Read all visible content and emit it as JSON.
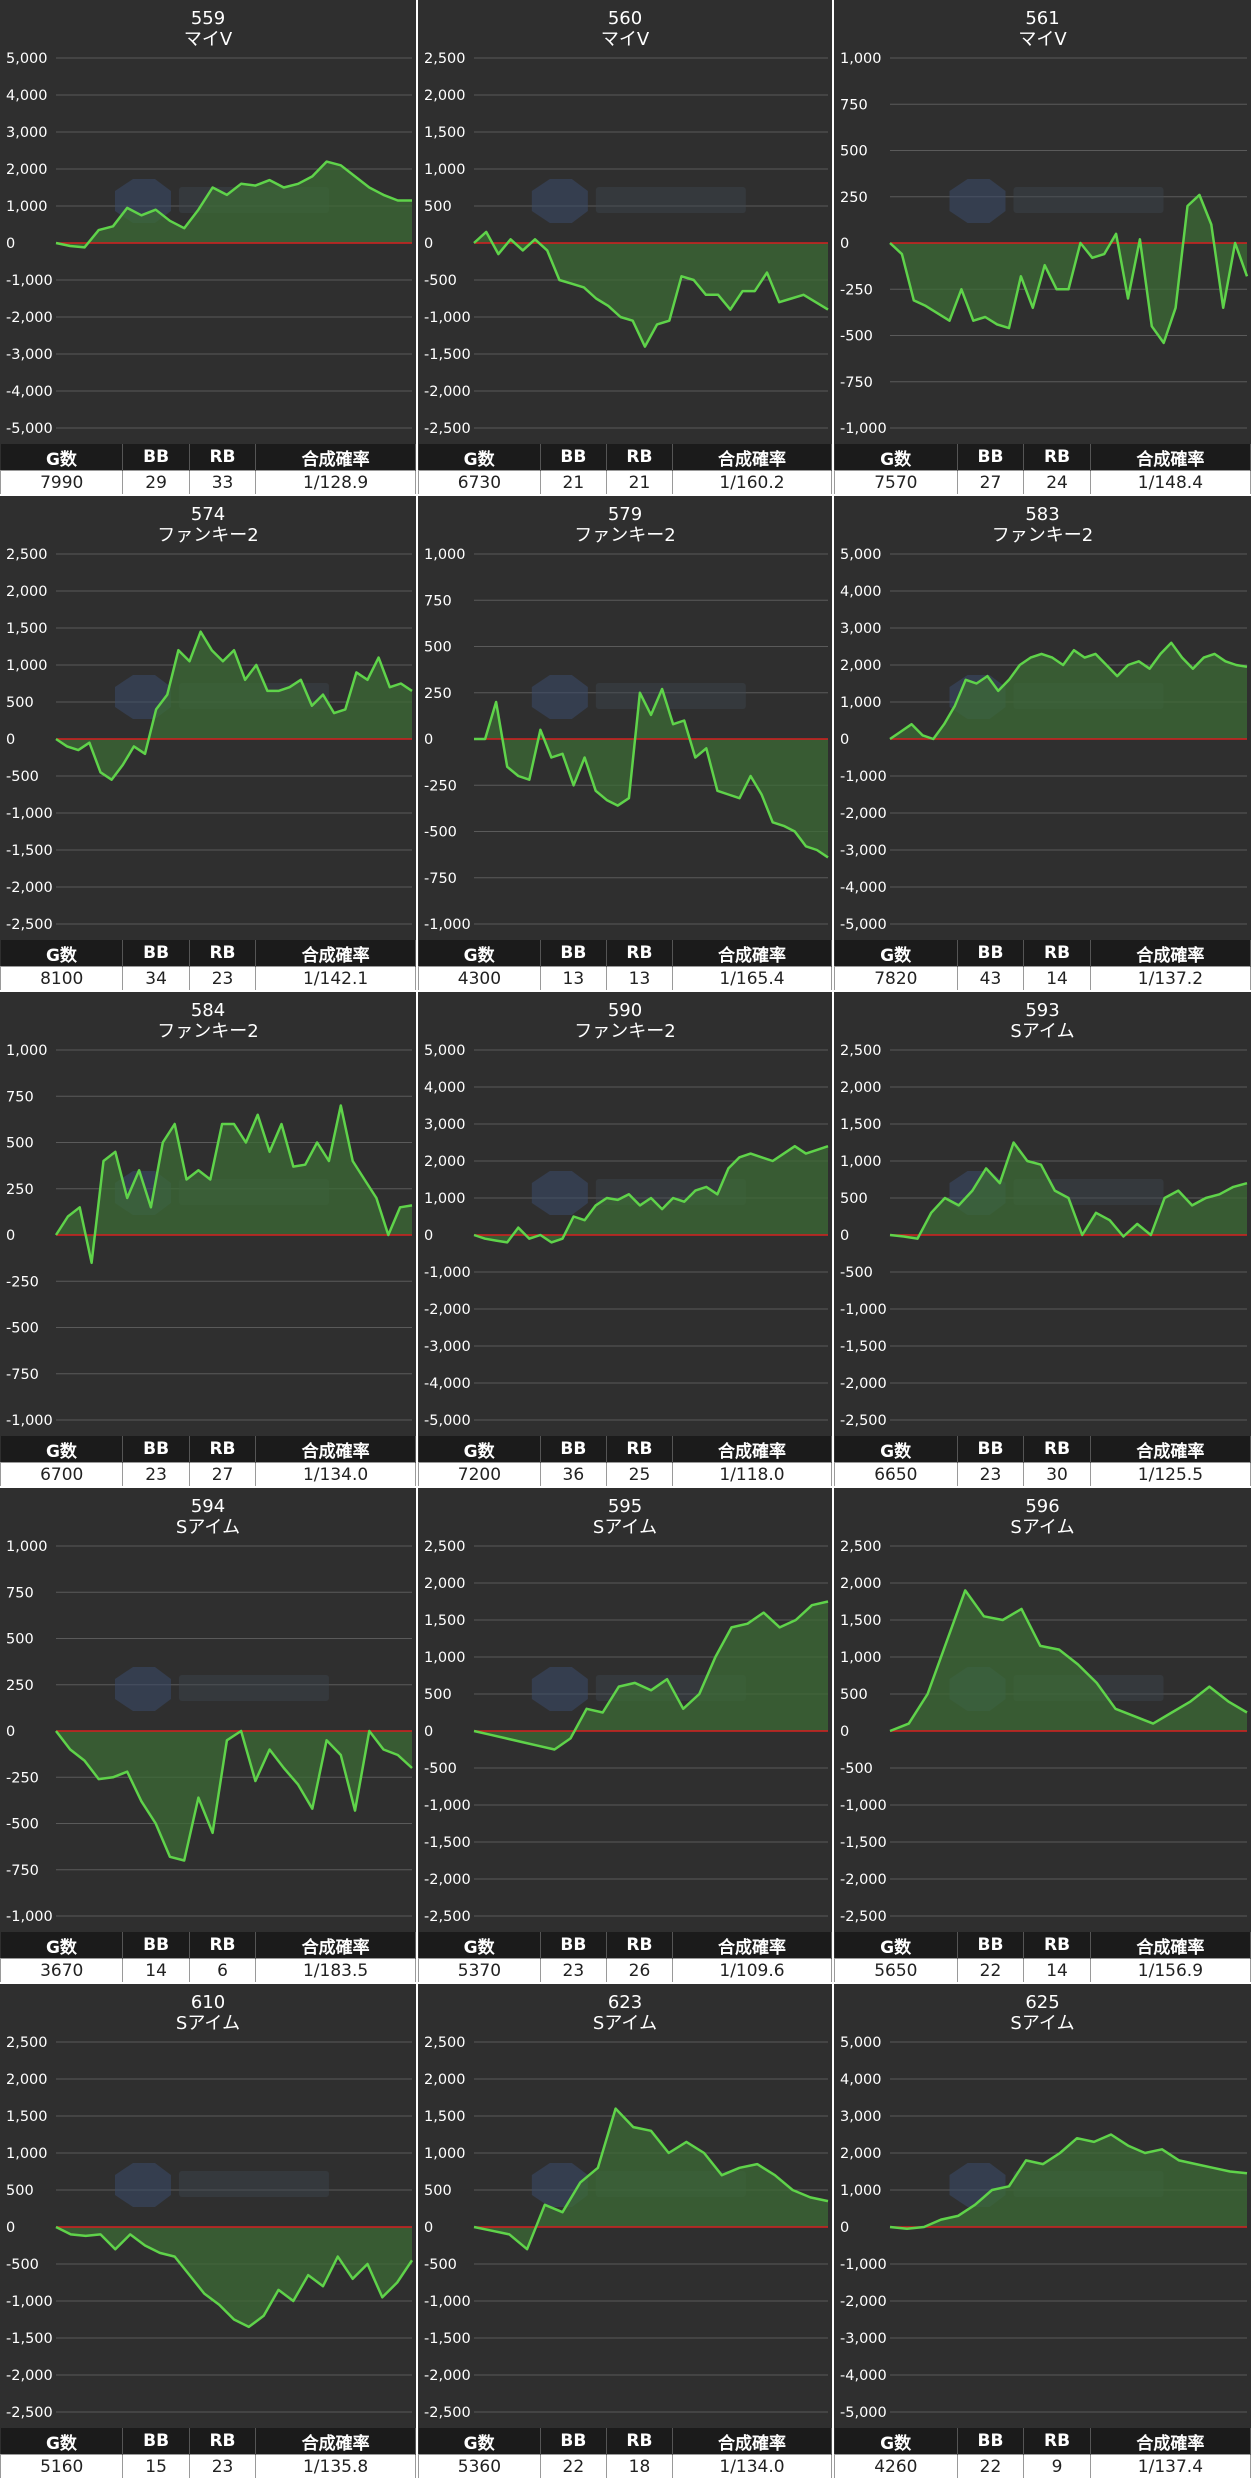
{
  "table_headers": {
    "games": "G数",
    "bb": "BB",
    "rb": "RB",
    "prob": "合成確率"
  },
  "colors": {
    "line": "#5fd34a",
    "fill": "#3c6b36",
    "zero": "#d62020",
    "bg": "#2f2f2f",
    "grid": "#5a5a5a"
  },
  "chart_data": [
    {
      "type": "area",
      "title": "559",
      "subtitle": "マイV",
      "ylim": [
        -5000,
        5000
      ],
      "yticks": [
        "5,000",
        "4,000",
        "3,000",
        "2,000",
        "1,000",
        "0",
        "-1,000",
        "-2,000",
        "-3,000",
        "-4,000",
        "-5,000"
      ],
      "y": [
        0,
        -80,
        -120,
        350,
        450,
        950,
        750,
        900,
        600,
        400,
        900,
        1500,
        1300,
        1600,
        1550,
        1700,
        1500,
        1600,
        1800,
        2200,
        2100,
        1800,
        1500,
        1300,
        1150,
        1150
      ],
      "stats": {
        "games": "7990",
        "bb": "29",
        "rb": "33",
        "prob": "1/128.9"
      }
    },
    {
      "type": "area",
      "title": "560",
      "subtitle": "マイV",
      "ylim": [
        -2500,
        2500
      ],
      "yticks": [
        "2,500",
        "2,000",
        "1,500",
        "1,000",
        "500",
        "0",
        "-500",
        "-1,000",
        "-1,500",
        "-2,000",
        "-2,500"
      ],
      "y": [
        0,
        150,
        -150,
        50,
        -100,
        50,
        -100,
        -500,
        -550,
        -600,
        -750,
        -850,
        -1000,
        -1050,
        -1400,
        -1100,
        -1050,
        -450,
        -500,
        -700,
        -700,
        -900,
        -650,
        -650,
        -400,
        -800,
        -750,
        -700,
        -800,
        -900
      ],
      "stats": {
        "games": "6730",
        "bb": "21",
        "rb": "21",
        "prob": "1/160.2"
      }
    },
    {
      "type": "area",
      "title": "561",
      "subtitle": "マイV",
      "ylim": [
        -1000,
        1000
      ],
      "yticks": [
        "1,000",
        "750",
        "500",
        "250",
        "0",
        "-250",
        "-500",
        "-750",
        "-1,000"
      ],
      "y": [
        0,
        -60,
        -310,
        -340,
        -380,
        -420,
        -250,
        -420,
        -400,
        -440,
        -460,
        -180,
        -350,
        -120,
        -250,
        -250,
        0,
        -80,
        -60,
        50,
        -300,
        20,
        -450,
        -540,
        -350,
        200,
        260,
        100,
        -350,
        0,
        -180
      ],
      "stats": {
        "games": "7570",
        "bb": "27",
        "rb": "24",
        "prob": "1/148.4"
      }
    },
    {
      "type": "area",
      "title": "574",
      "subtitle": "ファンキー2",
      "ylim": [
        -2500,
        2500
      ],
      "yticks": [
        "2,500",
        "2,000",
        "1,500",
        "1,000",
        "500",
        "0",
        "-500",
        "-1,000",
        "-1,500",
        "-2,000",
        "-2,500"
      ],
      "y": [
        0,
        -100,
        -150,
        -50,
        -450,
        -550,
        -350,
        -100,
        -200,
        400,
        600,
        1200,
        1050,
        1450,
        1200,
        1050,
        1200,
        800,
        1000,
        650,
        650,
        700,
        800,
        450,
        600,
        350,
        400,
        900,
        800,
        1100,
        700,
        750,
        650
      ],
      "stats": {
        "games": "8100",
        "bb": "34",
        "rb": "23",
        "prob": "1/142.1"
      }
    },
    {
      "type": "area",
      "title": "579",
      "subtitle": "ファンキー2",
      "ylim": [
        -1000,
        1000
      ],
      "yticks": [
        "1,000",
        "750",
        "500",
        "250",
        "0",
        "-250",
        "-500",
        "-750",
        "-1,000"
      ],
      "y": [
        0,
        0,
        200,
        -150,
        -200,
        -220,
        50,
        -100,
        -80,
        -250,
        -100,
        -280,
        -330,
        -360,
        -320,
        250,
        130,
        270,
        80,
        100,
        -100,
        -50,
        -280,
        -300,
        -320,
        -200,
        -300,
        -450,
        -470,
        -500,
        -580,
        -600,
        -640
      ],
      "stats": {
        "games": "4300",
        "bb": "13",
        "rb": "13",
        "prob": "1/165.4"
      }
    },
    {
      "type": "area",
      "title": "583",
      "subtitle": "ファンキー2",
      "ylim": [
        -5000,
        5000
      ],
      "yticks": [
        "5,000",
        "4,000",
        "3,000",
        "2,000",
        "1,000",
        "0",
        "-1,000",
        "-2,000",
        "-3,000",
        "-4,000",
        "-5,000"
      ],
      "y": [
        0,
        200,
        400,
        100,
        0,
        400,
        900,
        1600,
        1500,
        1700,
        1300,
        1600,
        2000,
        2200,
        2300,
        2200,
        2000,
        2400,
        2200,
        2300,
        2000,
        1700,
        2000,
        2100,
        1900,
        2300,
        2600,
        2200,
        1900,
        2200,
        2300,
        2100,
        2000,
        1950
      ],
      "stats": {
        "games": "7820",
        "bb": "43",
        "rb": "14",
        "prob": "1/137.2"
      }
    },
    {
      "type": "area",
      "title": "584",
      "subtitle": "ファンキー2",
      "ylim": [
        -1000,
        1000
      ],
      "yticks": [
        "1,000",
        "750",
        "500",
        "250",
        "0",
        "-250",
        "-500",
        "-750",
        "-1,000"
      ],
      "y": [
        0,
        100,
        150,
        -150,
        400,
        450,
        200,
        350,
        150,
        500,
        600,
        300,
        350,
        300,
        600,
        600,
        500,
        650,
        450,
        600,
        370,
        380,
        500,
        400,
        700,
        400,
        300,
        200,
        0,
        150,
        160
      ],
      "stats": {
        "games": "6700",
        "bb": "23",
        "rb": "27",
        "prob": "1/134.0"
      }
    },
    {
      "type": "area",
      "title": "590",
      "subtitle": "ファンキー2",
      "ylim": [
        -5000,
        5000
      ],
      "yticks": [
        "5,000",
        "4,000",
        "3,000",
        "2,000",
        "1,000",
        "0",
        "-1,000",
        "-2,000",
        "-3,000",
        "-4,000",
        "-5,000"
      ],
      "y": [
        0,
        -100,
        -150,
        -200,
        200,
        -100,
        0,
        -200,
        -100,
        500,
        400,
        800,
        1000,
        950,
        1100,
        800,
        1000,
        700,
        1000,
        900,
        1200,
        1300,
        1100,
        1800,
        2100,
        2200,
        2100,
        2000,
        2200,
        2400,
        2200,
        2300,
        2400
      ],
      "stats": {
        "games": "7200",
        "bb": "36",
        "rb": "25",
        "prob": "1/118.0"
      }
    },
    {
      "type": "area",
      "title": "593",
      "subtitle": "Sアイム",
      "ylim": [
        -2500,
        2500
      ],
      "yticks": [
        "2,500",
        "2,000",
        "1,500",
        "1,000",
        "500",
        "0",
        "-500",
        "-1,000",
        "-1,500",
        "-2,000",
        "-2,500"
      ],
      "y": [
        0,
        -20,
        -50,
        300,
        500,
        400,
        600,
        900,
        700,
        1250,
        1000,
        950,
        600,
        500,
        0,
        300,
        200,
        -20,
        150,
        0,
        500,
        600,
        400,
        500,
        550,
        650,
        700
      ],
      "stats": {
        "games": "6650",
        "bb": "23",
        "rb": "30",
        "prob": "1/125.5"
      }
    },
    {
      "type": "area",
      "title": "594",
      "subtitle": "Sアイム",
      "ylim": [
        -1000,
        1000
      ],
      "yticks": [
        "1,000",
        "750",
        "500",
        "250",
        "0",
        "-250",
        "-500",
        "-750",
        "-1,000"
      ],
      "y": [
        0,
        -100,
        -160,
        -260,
        -250,
        -220,
        -380,
        -500,
        -680,
        -700,
        -360,
        -550,
        -50,
        0,
        -270,
        -100,
        -200,
        -290,
        -420,
        -50,
        -130,
        -430,
        0,
        -100,
        -130,
        -200
      ],
      "stats": {
        "games": "3670",
        "bb": "14",
        "rb": "6",
        "prob": "1/183.5"
      }
    },
    {
      "type": "area",
      "title": "595",
      "subtitle": "Sアイム",
      "ylim": [
        -2500,
        2500
      ],
      "yticks": [
        "2,500",
        "2,000",
        "1,500",
        "1,000",
        "500",
        "0",
        "-500",
        "-1,000",
        "-1,500",
        "-2,000",
        "-2,500"
      ],
      "y": [
        0,
        -50,
        -100,
        -150,
        -200,
        -250,
        -100,
        300,
        250,
        600,
        650,
        550,
        700,
        300,
        500,
        1000,
        1400,
        1450,
        1600,
        1400,
        1500,
        1700,
        1750
      ],
      "stats": {
        "games": "5370",
        "bb": "23",
        "rb": "26",
        "prob": "1/109.6"
      }
    },
    {
      "type": "area",
      "title": "596",
      "subtitle": "Sアイム",
      "ylim": [
        -2500,
        2500
      ],
      "yticks": [
        "2,500",
        "2,000",
        "1,500",
        "1,000",
        "500",
        "0",
        "-500",
        "-1,000",
        "-1,500",
        "-2,000",
        "-2,500"
      ],
      "y": [
        0,
        100,
        500,
        1200,
        1900,
        1550,
        1500,
        1650,
        1150,
        1100,
        900,
        650,
        300,
        200,
        100,
        250,
        400,
        600,
        400,
        250
      ],
      "stats": {
        "games": "5650",
        "bb": "22",
        "rb": "14",
        "prob": "1/156.9"
      }
    },
    {
      "type": "area",
      "title": "610",
      "subtitle": "Sアイム",
      "ylim": [
        -2500,
        2500
      ],
      "yticks": [
        "2,500",
        "2,000",
        "1,500",
        "1,000",
        "500",
        "0",
        "-500",
        "-1,000",
        "-1,500",
        "-2,000",
        "-2,500"
      ],
      "y": [
        0,
        -100,
        -120,
        -100,
        -300,
        -100,
        -250,
        -350,
        -400,
        -650,
        -900,
        -1050,
        -1250,
        -1350,
        -1200,
        -850,
        -1000,
        -650,
        -800,
        -400,
        -700,
        -500,
        -950,
        -750,
        -450
      ],
      "stats": {
        "games": "5160",
        "bb": "15",
        "rb": "23",
        "prob": "1/135.8"
      }
    },
    {
      "type": "area",
      "title": "623",
      "subtitle": "Sアイム",
      "ylim": [
        -2500,
        2500
      ],
      "yticks": [
        "2,500",
        "2,000",
        "1,500",
        "1,000",
        "500",
        "0",
        "-500",
        "-1,000",
        "-1,500",
        "-2,000",
        "-2,500"
      ],
      "y": [
        0,
        -50,
        -100,
        -300,
        300,
        200,
        600,
        800,
        1600,
        1350,
        1300,
        1000,
        1150,
        1000,
        700,
        800,
        850,
        700,
        500,
        400,
        350
      ],
      "stats": {
        "games": "5360",
        "bb": "22",
        "rb": "18",
        "prob": "1/134.0"
      }
    },
    {
      "type": "area",
      "title": "625",
      "subtitle": "Sアイム",
      "ylim": [
        -5000,
        5000
      ],
      "yticks": [
        "5,000",
        "4,000",
        "3,000",
        "2,000",
        "1,000",
        "0",
        "-1,000",
        "-2,000",
        "-3,000",
        "-4,000",
        "-5,000"
      ],
      "y": [
        0,
        -50,
        0,
        200,
        300,
        600,
        1000,
        1100,
        1800,
        1700,
        2000,
        2400,
        2300,
        2500,
        2200,
        2000,
        2100,
        1800,
        1700,
        1600,
        1500,
        1450
      ],
      "stats": {
        "games": "4260",
        "bb": "22",
        "rb": "9",
        "prob": "1/137.4"
      }
    }
  ]
}
